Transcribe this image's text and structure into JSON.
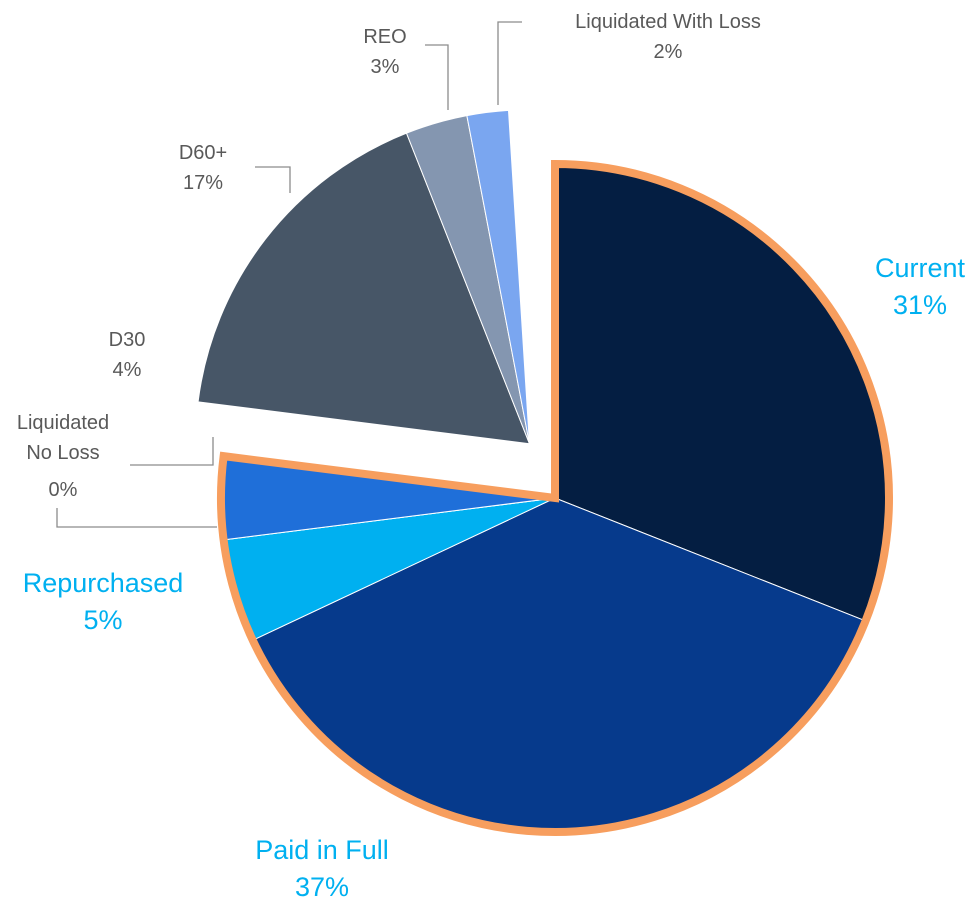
{
  "chart_data": {
    "type": "pie",
    "categories": [
      "Current",
      "Paid in Full",
      "Repurchased",
      "Liquidated No Loss",
      "D30",
      "D60+",
      "REO",
      "Liquidated With Loss"
    ],
    "values": [
      31,
      37,
      5,
      0,
      4,
      17,
      3,
      2
    ],
    "value_labels": [
      "31%",
      "37%",
      "5%",
      "0%",
      "4%",
      "17%",
      "3%",
      "2%"
    ],
    "colors": [
      "#041e42",
      "#063a8c",
      "#00b0f0",
      "#a6a6a6",
      "#1f6fd9",
      "#475667",
      "#8496b0",
      "#7aa6f0"
    ],
    "exploded_slices": [
      5,
      6,
      7
    ],
    "highlight_color": "#f79e5e"
  }
}
